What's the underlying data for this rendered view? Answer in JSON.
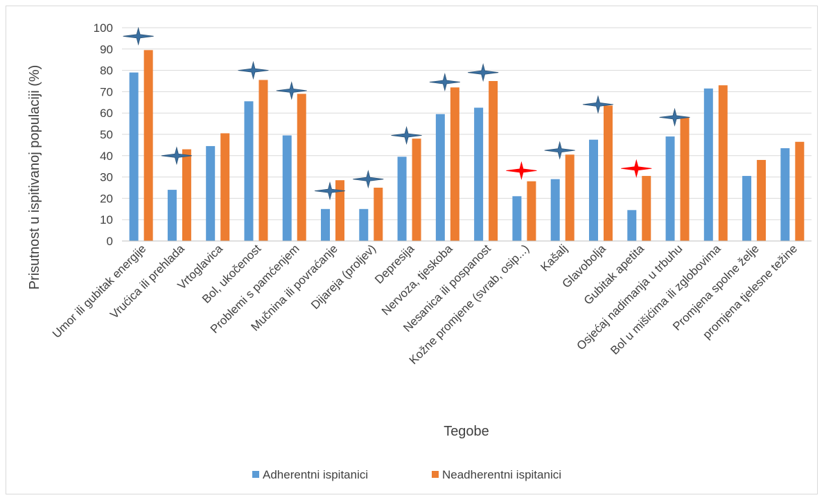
{
  "chart_data": {
    "type": "bar",
    "xlabel": "Tegobe",
    "ylabel": "Prisutnost u ispitivanoj populaciji (%)",
    "ylim": [
      0,
      100
    ],
    "yticks": [
      0,
      10,
      20,
      30,
      40,
      50,
      60,
      70,
      80,
      90,
      100
    ],
    "grid": true,
    "legend_position": "bottom",
    "categories": [
      "Umor ili gubitak energije",
      "Vrućica ili prehlada",
      "Vrtoglavica",
      "Bol, ukočenost",
      "Problemi s pamćenjem",
      "Mučnina ili povraćanje",
      "Dijareja (proljev)",
      "Depresija",
      "Nervoza, tjeskoba",
      "Nesanica ili pospanost",
      "Kožne promjene (svrab, osip...)",
      "Kašalj",
      "Glavobolja",
      "Gubitak apetita",
      "Osjećaj nadimanja u trbuhu",
      "Bol u mišićima ili zglobovima",
      "Promjena spolne želje",
      "promjena tjelesne težine"
    ],
    "series": [
      {
        "name": "Adherentni ispitanici",
        "color": "#5b9bd5",
        "values": [
          79,
          24,
          44.5,
          65.5,
          49.5,
          15,
          15,
          39.5,
          59.5,
          62.5,
          21,
          29,
          47.5,
          14.5,
          49,
          71.5,
          30.5,
          43.5
        ]
      },
      {
        "name": "Neadherentni ispitanici",
        "color": "#ed7d31",
        "values": [
          89.5,
          43,
          50.5,
          75.5,
          69,
          28.5,
          25,
          48,
          72,
          75,
          28,
          40.5,
          63.5,
          30.5,
          58,
          73,
          38,
          46.5
        ]
      }
    ],
    "star_markers": [
      {
        "category_index": 0,
        "value": 96,
        "color": "#3a6fa0"
      },
      {
        "category_index": 1,
        "value": 40,
        "color": "#3a6fa0"
      },
      {
        "category_index": 3,
        "value": 80,
        "color": "#3a6fa0"
      },
      {
        "category_index": 4,
        "value": 70.5,
        "color": "#3a6fa0"
      },
      {
        "category_index": 5,
        "value": 23.5,
        "color": "#3a6fa0"
      },
      {
        "category_index": 6,
        "value": 29,
        "color": "#3a6fa0"
      },
      {
        "category_index": 7,
        "value": 49.5,
        "color": "#3a6fa0"
      },
      {
        "category_index": 8,
        "value": 74.5,
        "color": "#3a6fa0"
      },
      {
        "category_index": 9,
        "value": 79,
        "color": "#3a6fa0"
      },
      {
        "category_index": 10,
        "value": 33,
        "color": "#ff0000"
      },
      {
        "category_index": 11,
        "value": 42.5,
        "color": "#3a6fa0"
      },
      {
        "category_index": 12,
        "value": 64,
        "color": "#3a6fa0"
      },
      {
        "category_index": 13,
        "value": 34,
        "color": "#ff0000"
      },
      {
        "category_index": 14,
        "value": 58,
        "color": "#3a6fa0"
      }
    ],
    "colors": {
      "grid": "#d9d9d9",
      "axis": "#bfbfbf",
      "text": "#404040",
      "frame": "#d9d9d9"
    }
  }
}
